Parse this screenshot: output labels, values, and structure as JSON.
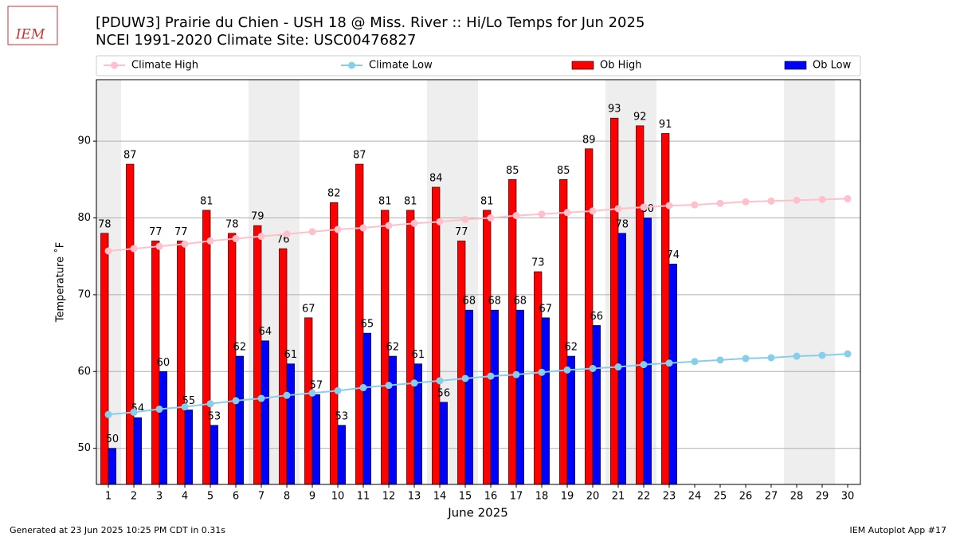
{
  "logo": "IEM",
  "footer_left": "Generated at 23 Jun 2025 10:25 PM CDT in 0.31s",
  "footer_right": "IEM Autoplot App #17",
  "chart_data": {
    "type": "bar",
    "title": "[PDUW3] Prairie du Chien - USH 18 @ Miss. River :: Hi/Lo Temps for Jun 2025",
    "subtitle": "NCEI 1991-2020 Climate Site: USC00476827",
    "x_label": "June 2025",
    "y_label": "Temperature ˚F",
    "x": [
      1,
      2,
      3,
      4,
      5,
      6,
      7,
      8,
      9,
      10,
      11,
      12,
      13,
      14,
      15,
      16,
      17,
      18,
      19,
      20,
      21,
      22,
      23,
      24,
      25,
      26,
      27,
      28,
      29,
      30
    ],
    "xlim": [
      0.53,
      30.5
    ],
    "xticks": [
      1,
      2,
      3,
      4,
      5,
      6,
      7,
      8,
      9,
      10,
      11,
      12,
      13,
      14,
      15,
      16,
      17,
      18,
      19,
      20,
      21,
      22,
      23,
      24,
      25,
      26,
      27,
      28,
      29,
      30
    ],
    "ylim": [
      45.3,
      98
    ],
    "yticks": [
      50,
      60,
      70,
      80,
      90
    ],
    "grid": true,
    "shaded_days": [
      1,
      7,
      8,
      14,
      15,
      21,
      22,
      28,
      29
    ],
    "series": [
      {
        "name": "Climate High",
        "kind": "line",
        "color": "#ffc0cb",
        "values": [
          75.7,
          76.0,
          76.3,
          76.6,
          77.0,
          77.3,
          77.6,
          77.9,
          78.2,
          78.5,
          78.7,
          79.0,
          79.3,
          79.5,
          79.8,
          80.0,
          80.3,
          80.5,
          80.7,
          80.9,
          81.2,
          81.4,
          81.6,
          81.7,
          81.9,
          82.1,
          82.2,
          82.3,
          82.4,
          82.5
        ]
      },
      {
        "name": "Climate Low",
        "kind": "line",
        "color": "#87ceeb",
        "values": [
          54.4,
          54.7,
          55.1,
          55.4,
          55.8,
          56.2,
          56.5,
          56.9,
          57.2,
          57.5,
          57.9,
          58.2,
          58.5,
          58.8,
          59.1,
          59.4,
          59.6,
          59.9,
          60.2,
          60.4,
          60.6,
          60.9,
          61.1,
          61.3,
          61.5,
          61.7,
          61.8,
          62.0,
          62.1,
          62.3
        ]
      },
      {
        "name": "Ob High",
        "kind": "bar",
        "color": "#ff0000",
        "values": [
          78,
          87,
          77,
          77,
          81,
          78,
          79,
          76,
          67,
          82,
          87,
          81,
          81,
          84,
          77,
          81,
          85,
          73,
          85,
          89,
          93,
          92,
          91,
          null,
          null,
          null,
          null,
          null,
          null,
          null
        ]
      },
      {
        "name": "Ob Low",
        "kind": "bar",
        "color": "#0000ff",
        "values": [
          50,
          54,
          60,
          55,
          53,
          62,
          64,
          61,
          57,
          53,
          65,
          62,
          61,
          56,
          68,
          68,
          68,
          67,
          62,
          66,
          78,
          80,
          74,
          null,
          null,
          null,
          null,
          null,
          null,
          null
        ]
      }
    ]
  }
}
